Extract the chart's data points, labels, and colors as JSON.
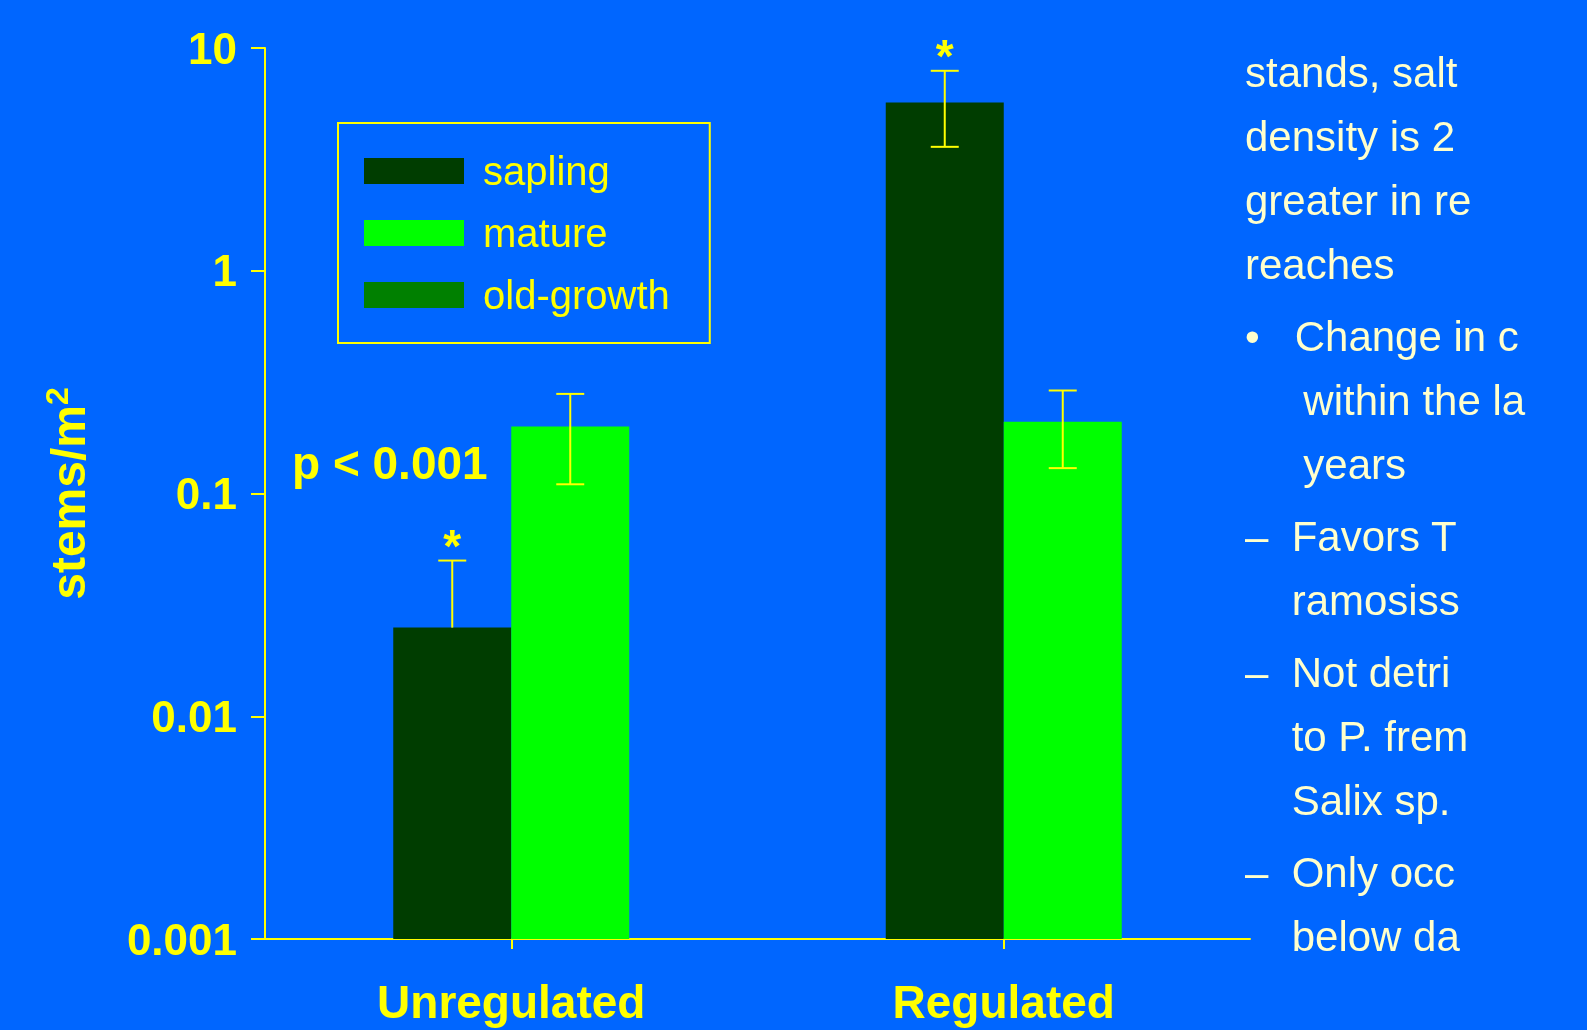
{
  "chart_data": {
    "type": "bar",
    "ylabel": "stems/m$^{2}$",
    "categories": [
      "Unregulated",
      "Regulated"
    ],
    "series": [
      {
        "name": "sapling",
        "color": "#003d00",
        "values": [
          0.025,
          5.7
        ],
        "errors": [
          [
            0.025,
            0.05
          ],
          [
            3.6,
            7.9
          ]
        ]
      },
      {
        "name": "mature",
        "color": "#00ff00",
        "values": [
          0.2,
          0.21
        ],
        "errors": [
          [
            0.11,
            0.28
          ],
          [
            0.13,
            0.29
          ]
        ]
      },
      {
        "name": "old-growth",
        "color": "#008000",
        "values": [
          null,
          null
        ]
      }
    ],
    "log": true,
    "ylim": [
      0.001,
      10
    ],
    "yticks": [
      0.001,
      0.01,
      0.1,
      1,
      10
    ],
    "grid": false,
    "legend": "top left",
    "annotations": [
      "p < 0.001",
      "*",
      "*",
      "stands, salt\ndensity is 2\ngreater in re\nreaches",
      "•   Change in c\n     within the la\n     years",
      "–  Favors T\n    ramosiss",
      "–  Not detri\n    to P. frem\n    Salix sp.",
      "–  Only occ\n    below da"
    ]
  }
}
